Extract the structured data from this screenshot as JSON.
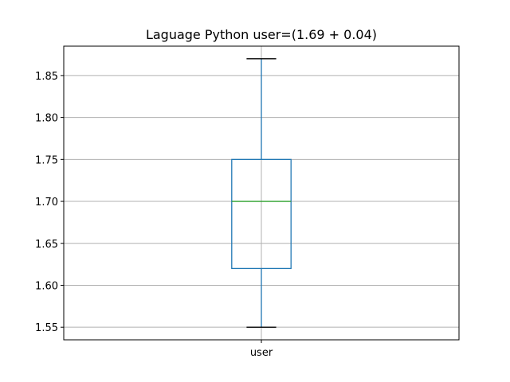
{
  "chart_data": {
    "type": "box",
    "title": "Laguage Python user=(1.69 + 0.04)",
    "xlabel": "",
    "ylabel": "",
    "categories": [
      "user"
    ],
    "boxes": [
      {
        "category": "user",
        "whisker_low": 1.55,
        "q1": 1.62,
        "median": 1.7,
        "q3": 1.75,
        "whisker_high": 1.87
      }
    ],
    "ylim": [
      1.535,
      1.885
    ],
    "yticks": [
      1.55,
      1.6,
      1.65,
      1.7,
      1.75,
      1.8,
      1.85
    ],
    "ytick_labels": [
      "1.55",
      "1.60",
      "1.65",
      "1.70",
      "1.75",
      "1.80",
      "1.85"
    ],
    "grid": true,
    "colors": {
      "box": "#1f77b4",
      "median": "#2ca02c",
      "caps": "#000000",
      "grid": "#b0b0b0"
    }
  }
}
